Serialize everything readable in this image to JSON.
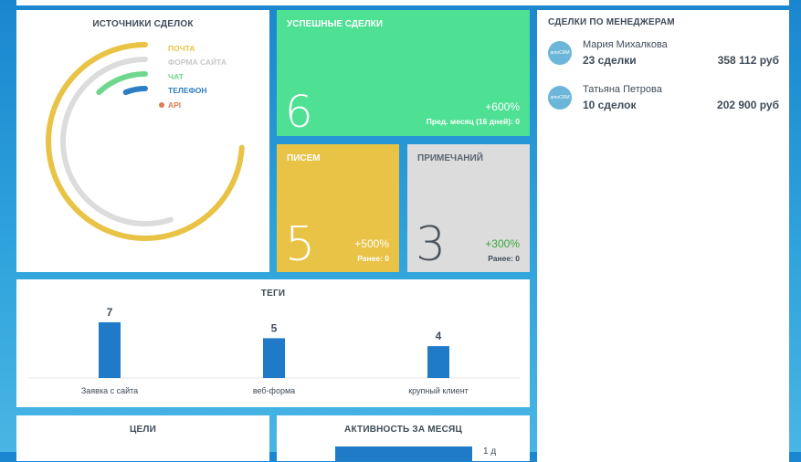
{
  "sources": {
    "title": "ИСТОЧНИКИ СДЕЛОК",
    "items": [
      {
        "label": "ПОЧТА",
        "color": "#e8c346",
        "sweep": 0.74
      },
      {
        "label": "ФОРМА САЙТА",
        "color": "#dcdcdc",
        "sweep": 0.55
      },
      {
        "label": "ЧАТ",
        "color": "#6fd68d",
        "sweep": 0.12
      },
      {
        "label": "ТЕЛЕФОН",
        "color": "#2d7ec4",
        "sweep": 0.06
      },
      {
        "label": "API",
        "color": "#e07a55",
        "sweep": 0.0
      }
    ]
  },
  "success": {
    "title": "УСПЕШНЫЕ СДЕЛКИ",
    "value": "6",
    "change": "+600%",
    "prev": "Пред. месяц (16 дней): 0",
    "color": "#4ee093"
  },
  "letters": {
    "title": "ПИСЕМ",
    "value": "5",
    "change": "+500%",
    "prev": "Ранее: 0",
    "color": "#e8c346"
  },
  "notes": {
    "title": "ПРИМЕЧАНИЙ",
    "value": "3",
    "change": "+300%",
    "prev": "Ранее: 0",
    "color": "#dcdcdc",
    "change_color": "#3aa63a"
  },
  "managers": {
    "title": "СДЕЛКИ ПО МЕНЕДЖЕРАМ",
    "avatar_text": "amoCRM",
    "list": [
      {
        "name": "Мария Михалкова",
        "deals": "23 сделки",
        "sum": "358 112 руб"
      },
      {
        "name": "Татьяна Петрова",
        "deals": "10 сделок",
        "sum": "202 900 руб"
      }
    ]
  },
  "tags": {
    "title": "ТЕГИ"
  },
  "goals": {
    "title": "ЦЕЛИ"
  },
  "activity": {
    "title": "АКТИВНОСТЬ ЗА МЕСЯЦ",
    "bar_label": "1 д"
  },
  "chart_data": {
    "type": "bar",
    "title": "ТЕГИ",
    "categories": [
      "Заявка с сайта",
      "веб-форма",
      "крупный клиент"
    ],
    "values": [
      7,
      5,
      4
    ],
    "ylim": [
      0,
      8
    ],
    "bar_color": "#1f7bc8"
  }
}
